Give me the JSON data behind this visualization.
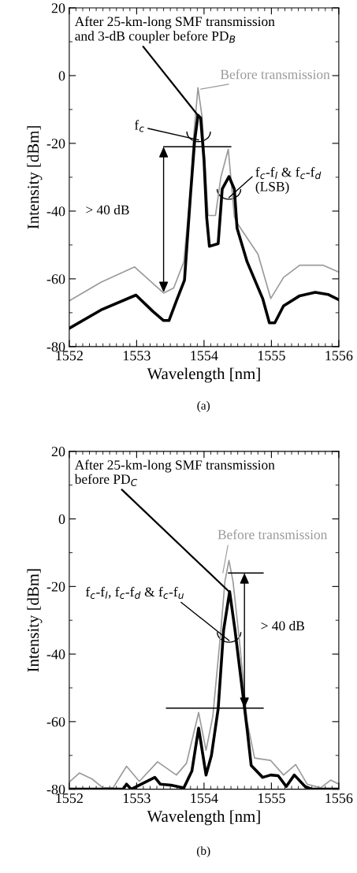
{
  "chart_data": [
    {
      "type": "line",
      "xlabel": "Wavelength [nm]",
      "ylabel": "Intensity [dBm]",
      "xlim": [
        1552,
        1556
      ],
      "ylim": [
        -80,
        20
      ],
      "xticks": [
        1552,
        1553,
        1554,
        1555,
        1556
      ],
      "yticks": [
        -80,
        -60,
        -40,
        -20,
        0,
        20
      ],
      "series": [
        {
          "color": "#9a9a9a",
          "x": [
            1552.0,
            1552.47,
            1552.97,
            1553.4,
            1553.55,
            1553.7,
            1553.8,
            1553.84,
            1553.91,
            1553.97,
            1554.02,
            1554.06,
            1554.17,
            1554.25,
            1554.36,
            1554.45,
            1554.49,
            1554.8,
            1554.99,
            1555.18,
            1555.42,
            1555.77,
            1556.0
          ],
          "values": [
            -66.5,
            -61,
            -56.5,
            -64.2,
            -62.7,
            -55,
            -33.5,
            -19.4,
            -3.6,
            -12,
            -27.8,
            -41.3,
            -41.3,
            -30,
            -21.7,
            -41.7,
            -43.5,
            -52.7,
            -65.8,
            -59.6,
            -56,
            -56,
            -58
          ]
        },
        {
          "color": "#000000",
          "x": [
            1552.0,
            1552.47,
            1552.99,
            1553.24,
            1553.4,
            1553.48,
            1553.59,
            1553.71,
            1553.8,
            1553.86,
            1553.91,
            1553.95,
            1554.0,
            1554.04,
            1554.08,
            1554.21,
            1554.27,
            1554.37,
            1554.45,
            1554.49,
            1554.64,
            1554.87,
            1554.97,
            1555.05,
            1555.18,
            1555.42,
            1555.65,
            1555.84,
            1556.0
          ],
          "values": [
            -74.6,
            -69.2,
            -64.8,
            -69.6,
            -72.3,
            -72.3,
            -66.5,
            -60.4,
            -35,
            -19.4,
            -11.7,
            -12.5,
            -25,
            -42,
            -50.4,
            -49.6,
            -33.5,
            -29.8,
            -33.5,
            -45,
            -55,
            -65.8,
            -73,
            -73,
            -68,
            -65,
            -64,
            -64.6,
            -66.2
          ]
        }
      ],
      "annotations": [
        {
          "text": "After 25-km-long SMF transmission\nand 3-dB coupler before PD$_{B}$",
          "x": 1553.92,
          "y": -12
        },
        {
          "text": "Before transmission",
          "x": 1553.95,
          "y": -4
        },
        {
          "text": "f$_{c}$",
          "x": 1553.92,
          "y": -19
        },
        "f$_{c}$-f$_{l}$ & f$_{c}$-f$_{d}$\n(LSB)",
        "> 40 dB",
        "(a)"
      ]
    },
    {
      "type": "line",
      "xlabel": "Wavelength [nm]",
      "ylabel": "Intensity [dBm]",
      "xlim": [
        1552,
        1556
      ],
      "ylim": [
        -80,
        20
      ],
      "xticks": [
        1552,
        1553,
        1554,
        1555,
        1556
      ],
      "yticks": [
        -80,
        -60,
        -40,
        -20,
        0,
        20
      ],
      "series": [
        {
          "color": "#9a9a9a",
          "x": [
            1552.01,
            1552.15,
            1552.34,
            1552.5,
            1552.65,
            1552.85,
            1553.04,
            1553.31,
            1553.59,
            1553.74,
            1553.92,
            1554.03,
            1554.13,
            1554.25,
            1554.31,
            1554.37,
            1554.43,
            1554.52,
            1554.64,
            1554.75,
            1554.99,
            1555.18,
            1555.36,
            1555.53,
            1555.73,
            1555.88,
            1556.0
          ],
          "values": [
            -77.7,
            -75.2,
            -77,
            -79.6,
            -79.6,
            -73.2,
            -77.7,
            -71.9,
            -75.8,
            -72.3,
            -57.3,
            -68.5,
            -58.5,
            -33,
            -18.5,
            -12.3,
            -18.5,
            -35,
            -60,
            -70.8,
            -71.5,
            -75.8,
            -72.7,
            -78.5,
            -79.6,
            -77.3,
            -78.5
          ]
        },
        {
          "color": "#000000",
          "x": [
            1552.0,
            1552.8,
            1552.85,
            1552.92,
            1553.27,
            1553.35,
            1553.51,
            1553.7,
            1553.82,
            1553.92,
            1554.03,
            1554.11,
            1554.21,
            1554.29,
            1554.38,
            1554.46,
            1554.64,
            1554.7,
            1554.87,
            1554.99,
            1555.1,
            1555.22,
            1555.34,
            1555.5,
            1555.6,
            1556.0
          ],
          "values": [
            -80,
            -80,
            -78.5,
            -80,
            -76.5,
            -78.5,
            -78.8,
            -79.6,
            -74.6,
            -61.9,
            -75.8,
            -70,
            -56.2,
            -33,
            -21.5,
            -33,
            -62.3,
            -73,
            -76.5,
            -75.8,
            -76,
            -79.2,
            -75.8,
            -79.2,
            -80,
            -80
          ]
        }
      ],
      "annotations": [
        {
          "text": "After 25-km-long SMF transmission\nbefore PD$_{C}$",
          "x": 1554.37,
          "y": -21.5
        },
        {
          "text": "Before transmission",
          "x": 1554.28,
          "y": -16
        },
        "f$_{c}$-f$_{l}$, f$_{c}$-f$_{d}$ & f$_{c}$-f$_{u}$",
        "> 40 dB",
        "(b)"
      ]
    }
  ]
}
